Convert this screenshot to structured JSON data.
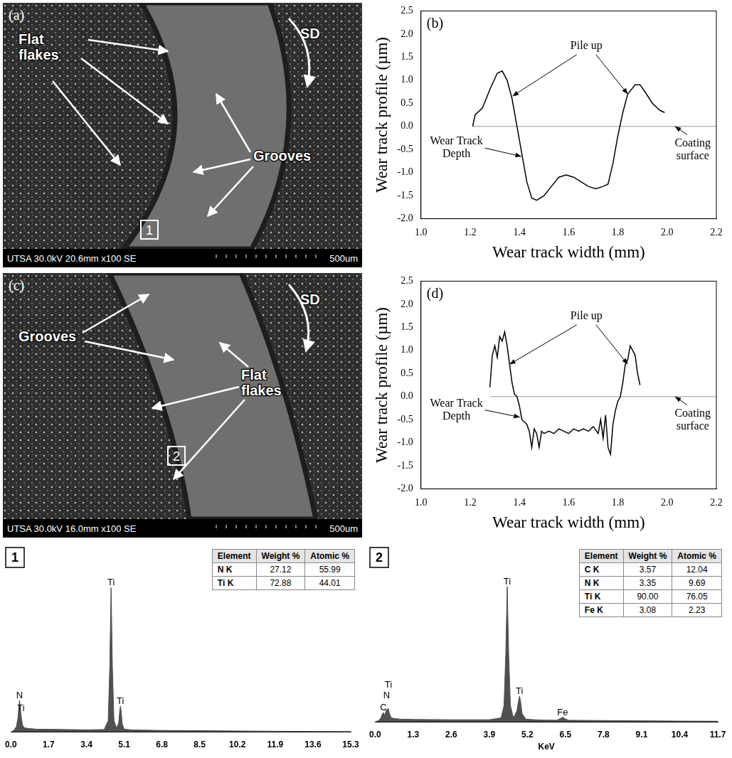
{
  "chart_data": [
    {
      "label": "(b)",
      "type": "line",
      "x": [
        1.21,
        1.22,
        1.25,
        1.28,
        1.31,
        1.33,
        1.35,
        1.37,
        1.39,
        1.41,
        1.43,
        1.45,
        1.47,
        1.5,
        1.53,
        1.56,
        1.59,
        1.62,
        1.65,
        1.68,
        1.71,
        1.74,
        1.76,
        1.78,
        1.8,
        1.82,
        1.84,
        1.87,
        1.89,
        1.91,
        1.94,
        1.97,
        1.99
      ],
      "values": [
        0.0,
        0.25,
        0.4,
        0.8,
        1.15,
        1.2,
        1.0,
        0.6,
        0.0,
        -0.6,
        -1.2,
        -1.55,
        -1.6,
        -1.5,
        -1.3,
        -1.1,
        -1.05,
        -1.1,
        -1.2,
        -1.3,
        -1.35,
        -1.3,
        -1.25,
        -0.8,
        -0.2,
        0.3,
        0.7,
        0.9,
        0.9,
        0.75,
        0.5,
        0.35,
        0.3
      ],
      "color": "#000000",
      "baseline": 0,
      "x_label": "Wear track width (mm)",
      "y_label": "Wear track profile (µm)",
      "annotations": [
        "Pile up",
        "Wear Track Depth",
        "Coating surface"
      ],
      "xlim": [
        1.0,
        2.2
      ],
      "xticks": [
        {
          "value": 1.0,
          "label": "1.0"
        },
        1.2,
        1.4,
        1.6,
        1.8,
        {
          "value": 2.0,
          "label": "2.0"
        },
        2.2
      ],
      "ylim": [
        -2.0,
        2.5
      ],
      "yticks": [
        {
          "value": -2.0,
          "label": "-2.0"
        },
        -1.5,
        {
          "value": -1.0,
          "label": "-1.0"
        },
        -0.5,
        {
          "value": 0,
          "label": "0.0"
        },
        0.5,
        {
          "value": 1.0,
          "label": "1.0"
        },
        1.5,
        {
          "value": 2.0,
          "label": "2.0"
        },
        2.5
      ],
      "grid": false
    },
    {
      "label": "(d)",
      "type": "line",
      "x": [
        1.28,
        1.29,
        1.3,
        1.31,
        1.32,
        1.33,
        1.34,
        1.35,
        1.36,
        1.37,
        1.38,
        1.39,
        1.4,
        1.41,
        1.42,
        1.43,
        1.44,
        1.45,
        1.46,
        1.47,
        1.48,
        1.49,
        1.5,
        1.52,
        1.54,
        1.56,
        1.58,
        1.6,
        1.62,
        1.64,
        1.66,
        1.68,
        1.7,
        1.72,
        1.73,
        1.74,
        1.75,
        1.76,
        1.77,
        1.78,
        1.79,
        1.8,
        1.81,
        1.82,
        1.83,
        1.84,
        1.85,
        1.86,
        1.87,
        1.88,
        1.89
      ],
      "values": [
        0.2,
        0.9,
        1.1,
        0.85,
        1.3,
        1.2,
        1.4,
        1.1,
        0.7,
        0.3,
        0.05,
        0.0,
        -0.2,
        -0.5,
        -0.55,
        -0.6,
        -0.75,
        -1.1,
        -0.7,
        -0.8,
        -1.1,
        -0.75,
        -0.8,
        -0.75,
        -0.8,
        -0.7,
        -0.75,
        -0.8,
        -0.7,
        -0.75,
        -0.7,
        -0.75,
        -0.65,
        -0.8,
        -0.5,
        -0.9,
        -0.4,
        -1.1,
        -1.25,
        -0.6,
        -0.3,
        -0.1,
        0.0,
        0.3,
        0.7,
        0.8,
        1.1,
        1.0,
        0.9,
        0.5,
        0.25
      ],
      "color": "#000000",
      "baseline": 0,
      "x_label": "Wear track width (mm)",
      "y_label": "Wear track profile (µm)",
      "annotations": [
        "Pile up",
        "Wear Track Depth",
        "Coating surface"
      ],
      "xlim": [
        1.0,
        2.2
      ],
      "xticks": [
        {
          "value": 1.0,
          "label": "1.0"
        },
        1.2,
        1.4,
        1.6,
        1.8,
        {
          "value": 2.0,
          "label": "2.0"
        },
        2.2
      ],
      "ylim": [
        -2.0,
        2.5
      ],
      "yticks": [
        {
          "value": -2.0,
          "label": "-2.0"
        },
        -1.5,
        {
          "value": -1.0,
          "label": "-1.0"
        },
        -0.5,
        {
          "value": 0,
          "label": "0.0"
        },
        0.5,
        {
          "value": 1.0,
          "label": "1.0"
        },
        1.5,
        {
          "value": 2.0,
          "label": "2.0"
        },
        2.5
      ],
      "grid": false
    },
    {
      "label": "1",
      "type": "area",
      "x": [
        0.0,
        0.15,
        0.25,
        0.32,
        0.36,
        0.39,
        0.42,
        0.45,
        0.48,
        0.52,
        0.6,
        0.8,
        1.2,
        1.7,
        2.5,
        3.4,
        4.2,
        4.38,
        4.45,
        4.51,
        4.57,
        4.64,
        4.75,
        4.85,
        4.9,
        4.93,
        4.96,
        5.01,
        5.1,
        5.5,
        6.8,
        8.5,
        10.2,
        11.9,
        13.6,
        15.3
      ],
      "values": [
        0,
        1.5,
        4,
        10,
        18,
        22,
        16,
        13,
        9,
        5,
        3,
        2.5,
        2,
        2,
        1.8,
        1.6,
        1.8,
        8,
        45,
        100,
        45,
        8,
        3,
        6,
        15,
        18,
        15,
        6,
        2,
        1.5,
        1.2,
        1,
        0.8,
        0.6,
        0.5,
        0.4
      ],
      "color": "#505050",
      "peak_labels": [
        {
          "x": 0.39,
          "text": "N"
        },
        {
          "x": 0.45,
          "text": "Ti"
        },
        {
          "x": 4.51,
          "text": "Ti"
        },
        {
          "x": 4.93,
          "text": "Ti"
        }
      ],
      "table": {
        "columns": [
          "Element",
          "Weight %",
          "Atomic %"
        ],
        "rows": [
          [
            "N K",
            "27.12",
            "55.99"
          ],
          [
            "Ti K",
            "72.88",
            "44.01"
          ]
        ]
      },
      "xlim": [
        0.0,
        15.3
      ],
      "xticks": [
        {
          "value": 0,
          "label": "0.0"
        },
        1.7,
        3.4,
        5.1,
        6.8,
        8.5,
        10.2,
        11.9,
        13.6,
        15.3
      ],
      "ylim": [
        0,
        112
      ],
      "tick_labels": "x",
      "grid": false
    },
    {
      "label": "2",
      "type": "area",
      "x": [
        0.0,
        0.12,
        0.2,
        0.25,
        0.28,
        0.31,
        0.34,
        0.37,
        0.39,
        0.41,
        0.45,
        0.49,
        0.55,
        0.65,
        0.9,
        1.3,
        2.6,
        3.9,
        4.3,
        4.4,
        4.46,
        4.51,
        4.56,
        4.62,
        4.72,
        4.84,
        4.9,
        4.93,
        4.96,
        5.02,
        5.15,
        5.6,
        6.2,
        6.33,
        6.4,
        6.47,
        6.6,
        7.8,
        9.1,
        10.4,
        11.7
      ],
      "values": [
        0,
        1,
        3,
        6,
        7,
        5,
        6,
        8,
        9,
        9,
        10,
        6,
        3,
        2.5,
        2,
        1.8,
        1.6,
        1.6,
        3,
        12,
        50,
        100,
        50,
        12,
        3,
        8,
        16,
        19,
        16,
        6,
        2,
        1.4,
        1.2,
        2.5,
        3.5,
        2.5,
        1.2,
        1,
        0.8,
        0.6,
        0.5
      ],
      "color": "#505050",
      "x_label": "KeV",
      "peak_labels": [
        {
          "x": 0.28,
          "text": "C"
        },
        {
          "x": 0.39,
          "text": "N"
        },
        {
          "x": 0.45,
          "text": "Ti"
        },
        {
          "x": 4.51,
          "text": "Ti"
        },
        {
          "x": 4.93,
          "text": "Ti"
        },
        {
          "x": 6.4,
          "text": "Fe"
        }
      ],
      "table": {
        "columns": [
          "Element",
          "Weight %",
          "Atomic %"
        ],
        "rows": [
          [
            "C K",
            "3.57",
            "12.04"
          ],
          [
            "N K",
            "3.35",
            "9.69"
          ],
          [
            "Ti K",
            "90.00",
            "76.05"
          ],
          [
            "Fe K",
            "3.08",
            "2.23"
          ]
        ]
      },
      "xlim": [
        0.0,
        11.7
      ],
      "xticks": [
        {
          "value": 0,
          "label": "0.0"
        },
        1.3,
        2.6,
        3.9,
        5.2,
        6.5,
        7.8,
        9.1,
        10.4,
        11.7
      ],
      "ylim": [
        0,
        112
      ],
      "tick_labels": "x",
      "grid": false
    }
  ],
  "images": [
    {
      "label": "(a)",
      "annotations": [
        "Flat flakes",
        "Grooves",
        "SD"
      ],
      "region": "1",
      "info": "UTSA 30.0kV 20.6mm x100 SE",
      "scale_bar": "500um"
    },
    {
      "label": "(c)",
      "annotations": [
        "Grooves",
        "Flat flakes",
        "SD"
      ],
      "region": "2",
      "info": "UTSA 30.0kV 16.0mm x100 SE",
      "scale_bar": "500um"
    }
  ]
}
